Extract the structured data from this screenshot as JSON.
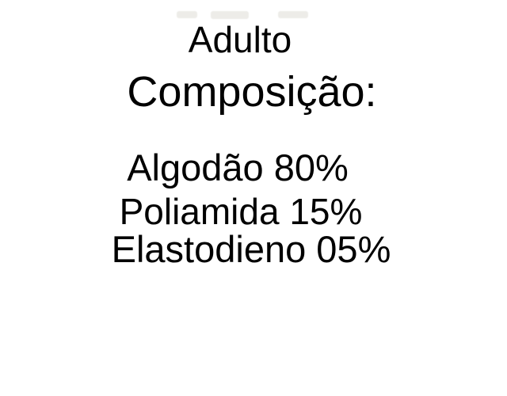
{
  "page": {
    "background_color": "#ffffff",
    "text_color": "#000000"
  },
  "label": {
    "title": "Adulto",
    "section_heading": "Composição:",
    "composition": [
      {
        "material": "Algodão",
        "percentage": "80%",
        "text": "Algodão 80%"
      },
      {
        "material": "Poliamida",
        "percentage": "15%",
        "text": "Poliamida 15%"
      },
      {
        "material": "Elastodieno",
        "percentage": "05%",
        "text": "Elastodieno 05%"
      }
    ]
  },
  "artifacts": {
    "cropped_text_at_top": true,
    "cropped_text_color": "#edece8"
  }
}
